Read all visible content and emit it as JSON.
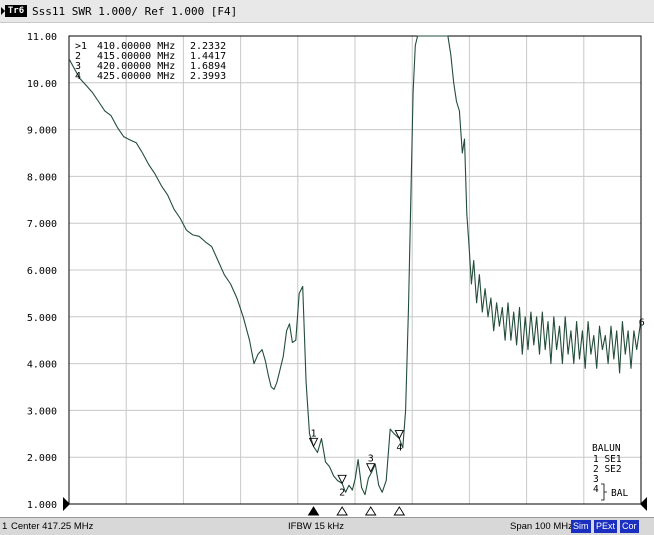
{
  "header": {
    "trace_tag": "Tr6",
    "title": "Sss11 SWR 1.000/ Ref 1.000 [F4]"
  },
  "status": {
    "channel": "1",
    "center": "Center 417.25 MHz",
    "ifbw": "IFBW 15 kHz",
    "span": "Span 100 MHz",
    "badges": [
      "Sim",
      "PExt",
      "Cor"
    ]
  },
  "colors": {
    "trace": "#234d3a",
    "grid": "#c8c8c8",
    "badge": "#1a2fbf"
  },
  "marker_table": [
    {
      "id": ">1",
      "freq": "410.00000 MHz",
      "value": "2.2332"
    },
    {
      "id": "2",
      "freq": "415.00000 MHz",
      "value": "1.4417"
    },
    {
      "id": "3",
      "freq": "420.00000 MHz",
      "value": "1.6894"
    },
    {
      "id": "4",
      "freq": "425.00000 MHz",
      "value": "2.3993"
    }
  ],
  "balun": {
    "title": "BALUN",
    "lines": [
      "1  SE1",
      "2  SE2",
      "3",
      "4"
    ],
    "bal": "BAL"
  },
  "chart_data": {
    "type": "line",
    "title": "Sss11 SWR 1.000/ Ref 1.000 [F4]",
    "xlabel": "",
    "ylabel": "",
    "x_unit": "MHz",
    "xlim": [
      367.25,
      467.25
    ],
    "ylim": [
      1.0,
      11.0
    ],
    "yticks": [
      "11.00",
      "10.00",
      "9.000",
      "8.000",
      "7.000",
      "6.000",
      "5.000",
      "4.000",
      "3.000",
      "2.000",
      "1.000"
    ],
    "grid": true,
    "series": [
      {
        "x": [
          367.3,
          368.2,
          369.1,
          370.2,
          371.3,
          372.4,
          373.5,
          374.6,
          375.7,
          376.8,
          377.9,
          379.0,
          380.1,
          381.2,
          382.3,
          383.4,
          384.5,
          385.6,
          386.7,
          387.8,
          388.9,
          390.0,
          391.1,
          392.2,
          393.3,
          394.4,
          395.5,
          396.6,
          397.7,
          398.8,
          399.6,
          400.3,
          401.0,
          401.6,
          402.1,
          402.6,
          403.1,
          403.6,
          404.1,
          404.7,
          405.3,
          405.8,
          406.3,
          406.9,
          407.5,
          408.1,
          408.7,
          409.3,
          410.0,
          410.7,
          411.4,
          412.1,
          412.8,
          413.5,
          414.2,
          415.0,
          415.6,
          416.2,
          416.8,
          417.3,
          417.8,
          418.4,
          419.0,
          419.6,
          420.2,
          420.8,
          421.4,
          422.0,
          422.7,
          423.4,
          424.1,
          425.0,
          425.6,
          426.1,
          426.6,
          427.0,
          427.4,
          427.8,
          428.2,
          428.6,
          429.0,
          429.4,
          429.8,
          430.2,
          430.6,
          431.0,
          431.5,
          432.0,
          432.5,
          433.0,
          433.5,
          434.0,
          434.5,
          435.0,
          435.5,
          436.0,
          436.4,
          436.8,
          437.2,
          437.6,
          438.0,
          438.5,
          439.0,
          439.5,
          440.0,
          440.5,
          441.0,
          441.5,
          442.0,
          442.5,
          443.0,
          443.5,
          444.0,
          444.5,
          445.0,
          445.5,
          446.0,
          446.5,
          447.0,
          447.5,
          448.0,
          448.5,
          449.0,
          449.5,
          450.0,
          450.5,
          451.0,
          451.5,
          452.0,
          452.5,
          453.0,
          453.5,
          454.0,
          454.5,
          455.0,
          455.5,
          456.0,
          456.5,
          457.0,
          457.5,
          458.0,
          458.5,
          459.0,
          459.5,
          460.0,
          460.5,
          461.0,
          461.5,
          462.0,
          462.5,
          463.0,
          463.5,
          464.0,
          464.5,
          465.0,
          465.5,
          466.0,
          466.5,
          467.2
        ],
        "y": [
          10.5,
          10.3,
          10.1,
          9.95,
          9.8,
          9.6,
          9.4,
          9.3,
          9.05,
          8.85,
          8.78,
          8.72,
          8.5,
          8.25,
          8.05,
          7.8,
          7.6,
          7.3,
          7.1,
          6.85,
          6.75,
          6.72,
          6.6,
          6.5,
          6.2,
          5.9,
          5.7,
          5.4,
          5.0,
          4.5,
          4.0,
          4.2,
          4.3,
          4.05,
          3.75,
          3.5,
          3.45,
          3.6,
          3.85,
          4.15,
          4.7,
          4.85,
          4.45,
          4.5,
          5.5,
          5.65,
          3.6,
          2.5,
          2.23,
          2.1,
          2.4,
          1.9,
          1.8,
          1.6,
          1.5,
          1.44,
          1.25,
          1.4,
          1.3,
          1.55,
          1.95,
          1.35,
          1.2,
          1.55,
          1.69,
          1.85,
          1.4,
          1.25,
          1.5,
          2.6,
          2.5,
          2.4,
          2.2,
          3.0,
          5.2,
          7.5,
          9.8,
          10.8,
          11.0,
          11.0,
          11.0,
          11.0,
          11.0,
          11.0,
          11.0,
          11.0,
          11.0,
          11.0,
          11.0,
          11.0,
          11.0,
          10.6,
          10.0,
          9.6,
          9.4,
          8.5,
          8.8,
          7.2,
          6.5,
          5.7,
          6.2,
          5.3,
          5.9,
          5.1,
          5.6,
          5.0,
          5.4,
          4.7,
          5.3,
          4.8,
          5.2,
          4.5,
          5.3,
          4.5,
          5.1,
          4.4,
          5.2,
          4.2,
          5.0,
          4.3,
          5.1,
          4.4,
          5.0,
          4.2,
          5.1,
          4.3,
          4.9,
          4.0,
          5.0,
          4.3,
          4.8,
          4.0,
          5.0,
          4.2,
          4.7,
          4.0,
          4.9,
          4.1,
          4.7,
          3.9,
          4.9,
          4.2,
          4.6,
          3.9,
          4.8,
          4.3,
          4.6,
          4.0,
          4.8,
          4.1,
          4.7,
          3.8,
          4.9,
          4.2,
          4.7,
          3.9,
          4.7,
          4.3,
          4.9
        ]
      }
    ],
    "markers": [
      {
        "label": "1",
        "x": 410.0,
        "y": 2.2332
      },
      {
        "label": "2",
        "x": 415.0,
        "y": 1.4417
      },
      {
        "label": "3",
        "x": 420.0,
        "y": 1.6894
      },
      {
        "label": "4",
        "x": 425.0,
        "y": 2.3993
      }
    ],
    "trace_end_label": "6",
    "ref_level": 1.0
  }
}
